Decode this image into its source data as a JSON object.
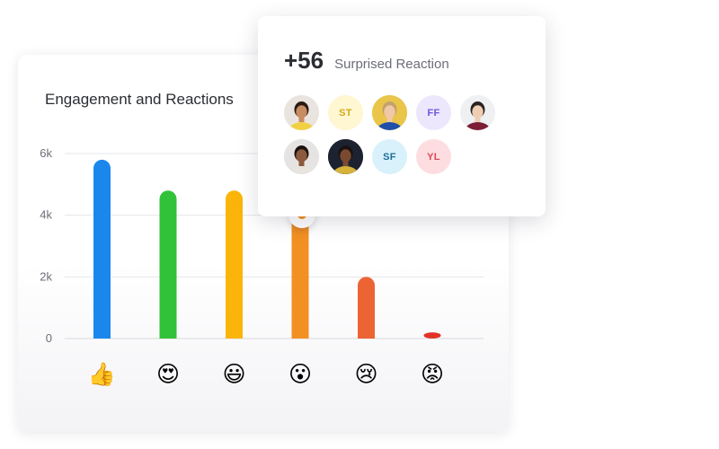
{
  "chart_data": {
    "type": "bar",
    "title": "Engagement and Reactions",
    "categories": [
      "👍",
      "😍",
      "😃",
      "😮",
      "😢",
      "😡"
    ],
    "category_names": [
      "thumbs-up",
      "heart-eyes",
      "smiley",
      "surprised",
      "crying",
      "angry"
    ],
    "values": [
      5800,
      4800,
      4800,
      4000,
      2000,
      200
    ],
    "colors": [
      "#1b87ec",
      "#31c23a",
      "#fbb50a",
      "#f29023",
      "#ec6434",
      "#e33127"
    ],
    "yticks": [
      0,
      2000,
      4000,
      6000
    ],
    "ytick_labels": [
      "0",
      "2k",
      "4k",
      "6k"
    ],
    "ylim": [
      0,
      6000
    ],
    "grid": true,
    "xlabel": "",
    "ylabel": ""
  },
  "popup": {
    "count": "+56",
    "label": "Surprised Reaction",
    "avatars": [
      {
        "type": "photo",
        "name": "avatar-photo-1",
        "bg": "#e9e4df",
        "skin": "#c88c62",
        "hair": "#2a1a12",
        "shirt": "#f2d043"
      },
      {
        "type": "initials",
        "name": "avatar-st",
        "text": "ST",
        "bg": "#fff6d2",
        "color": "#d6a81b"
      },
      {
        "type": "photo",
        "name": "avatar-photo-2",
        "bg": "#e9c54a",
        "skin": "#f0c8a8",
        "hair": "#c2a16b",
        "shirt": "#1f4fa8"
      },
      {
        "type": "initials",
        "name": "avatar-ff",
        "text": "FF",
        "bg": "#ece7fd",
        "color": "#6a55e0"
      },
      {
        "type": "photo",
        "name": "avatar-photo-3",
        "bg": "#eef0f2",
        "skin": "#efcdb3",
        "hair": "#2b2320",
        "shirt": "#7a1d35"
      },
      {
        "type": "photo",
        "name": "avatar-photo-4",
        "bg": "#e6e4e2",
        "skin": "#8c5a3c",
        "hair": "#1c130f",
        "shirt": "#e8e4de"
      },
      {
        "type": "photo",
        "name": "avatar-photo-5",
        "bg": "#1d2230",
        "skin": "#7a4a30",
        "hair": "#1a120e",
        "shirt": "#d6b23a"
      },
      {
        "type": "initials",
        "name": "avatar-sf",
        "text": "SF",
        "bg": "#d8f1fb",
        "color": "#1d6f97"
      },
      {
        "type": "initials",
        "name": "avatar-yl",
        "text": "YL",
        "bg": "#fddde0",
        "color": "#d94a58"
      }
    ]
  }
}
